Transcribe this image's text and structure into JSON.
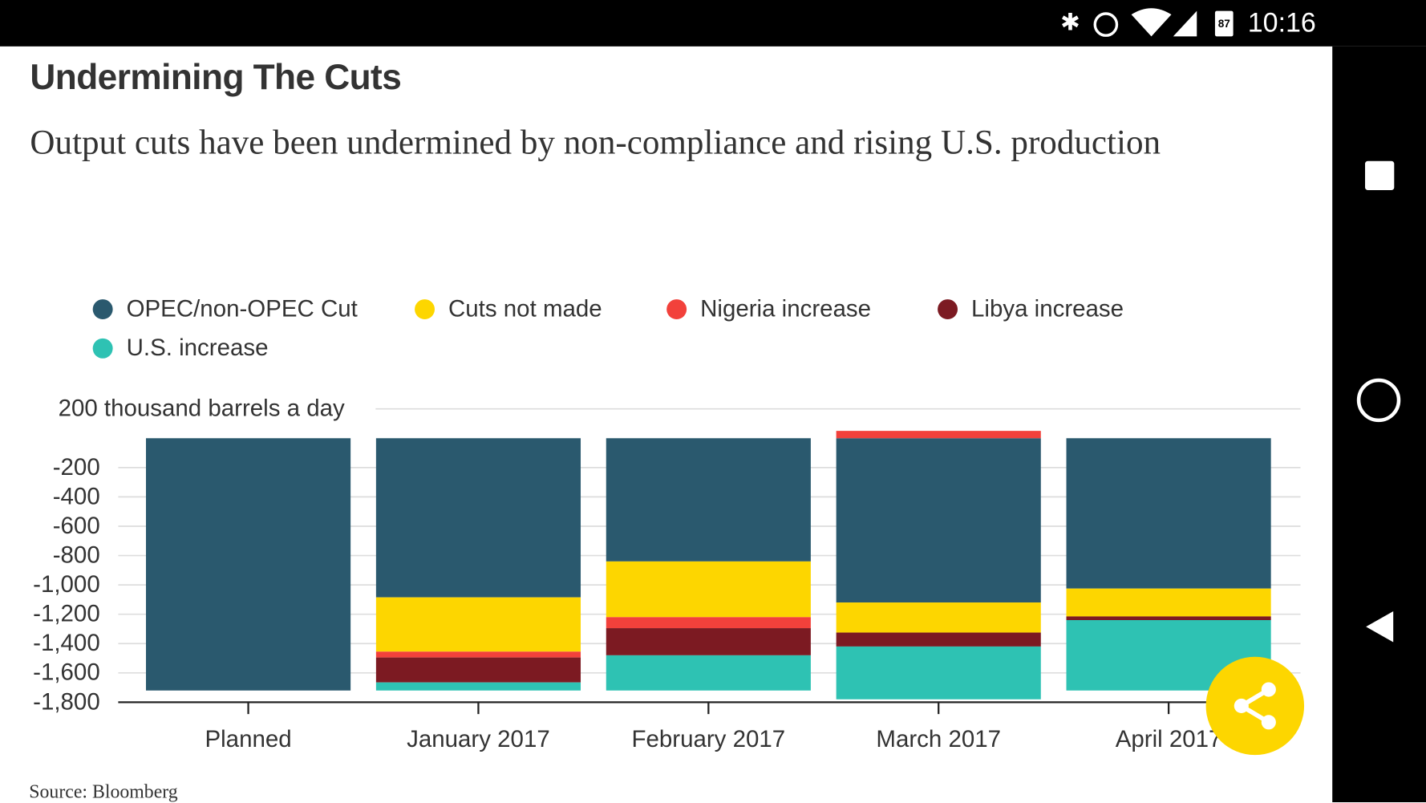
{
  "status_bar": {
    "time": "10:16",
    "battery": "87"
  },
  "chart_data": {
    "type": "stacked-bar",
    "title": "Undermining The Cuts",
    "subtitle": "Output cuts have been undermined by non-compliance and rising U.S. production",
    "source": "Source: Bloomberg",
    "categories": [
      "Planned",
      "January 2017",
      "February 2017",
      "March 2017",
      "April 2017"
    ],
    "series": [
      {
        "name": "OPEC/non-OPEC Cut",
        "color": "#2a596e",
        "values": [
          -1720,
          -1085,
          -840,
          -1120,
          -1025
        ]
      },
      {
        "name": "Cuts not made",
        "color": "#fdd600",
        "values": [
          0,
          -370,
          -380,
          -205,
          -190
        ]
      },
      {
        "name": "Nigeria increase",
        "color": "#f2413b",
        "values": [
          0,
          -40,
          -75,
          50,
          0
        ]
      },
      {
        "name": "Libya increase",
        "color": "#7c1a22",
        "values": [
          0,
          -170,
          -185,
          -95,
          -25
        ]
      },
      {
        "name": "U.S. increase",
        "color": "#2ec2b3",
        "values": [
          0,
          -55,
          -240,
          -360,
          -480
        ]
      }
    ],
    "ylim": [
      -1800,
      200
    ],
    "yticks": [
      {
        "value": 200,
        "label": "200 thousand barrels a day"
      },
      -200,
      -400,
      -600,
      -800,
      {
        "value": -1000,
        "label": "-1,000"
      },
      {
        "value": -1200,
        "label": "-1,200"
      },
      {
        "value": -1400,
        "label": "-1,400"
      },
      {
        "value": -1600,
        "label": "-1,600"
      },
      {
        "value": -1800,
        "label": "-1,800"
      }
    ],
    "grid": true
  }
}
